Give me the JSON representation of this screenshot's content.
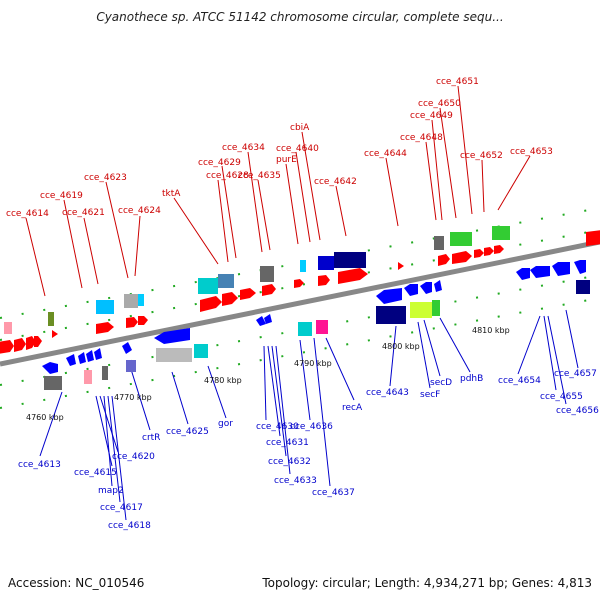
{
  "title": "Cyanothece sp. ATCC 51142 chromosome circular, complete sequ...",
  "footer": {
    "accession": "Accession: NC_010546",
    "summary": "Topology: circular; Length: 4,934,271 bp; Genes: 4,813"
  },
  "colors": {
    "forward": "#ff0000",
    "reverse": "#0000ff",
    "backbone": "#888888",
    "tick": "#22aa22"
  },
  "ruler": [
    {
      "label": "4760 kbp"
    },
    {
      "label": "4770 kbp"
    },
    {
      "label": "4780 kbp"
    },
    {
      "label": "4790 kbp"
    },
    {
      "label": "4800 kbp"
    },
    {
      "label": "4810 kbp"
    }
  ],
  "genes_forward": [
    {
      "label": "cce_4614"
    },
    {
      "label": "cce_4619"
    },
    {
      "label": "cce_4621"
    },
    {
      "label": "cce_4623"
    },
    {
      "label": "cce_4624"
    },
    {
      "label": "tktA"
    },
    {
      "label": "cce_4628"
    },
    {
      "label": "cce_4629"
    },
    {
      "label": "cce_4634"
    },
    {
      "label": "cce_4635"
    },
    {
      "label": "purE"
    },
    {
      "label": "cce_4640"
    },
    {
      "label": "cbiA"
    },
    {
      "label": "cce_4642"
    },
    {
      "label": "cce_4644"
    },
    {
      "label": "cce_4648"
    },
    {
      "label": "cce_4649"
    },
    {
      "label": "cce_4650"
    },
    {
      "label": "cce_4651"
    },
    {
      "label": "cce_4652"
    },
    {
      "label": "cce_4653"
    }
  ],
  "genes_reverse": [
    {
      "label": "cce_4613"
    },
    {
      "label": "cce_4615"
    },
    {
      "label": "cce_4620"
    },
    {
      "label": "map2"
    },
    {
      "label": "cce_4617"
    },
    {
      "label": "cce_4618"
    },
    {
      "label": "crtR"
    },
    {
      "label": "cce_4625"
    },
    {
      "label": "gor"
    },
    {
      "label": "cce_4630"
    },
    {
      "label": "cce_4631"
    },
    {
      "label": "cce_4632"
    },
    {
      "label": "cce_4633"
    },
    {
      "label": "cce_4636"
    },
    {
      "label": "cce_4637"
    },
    {
      "label": "recA"
    },
    {
      "label": "cce_4643"
    },
    {
      "label": "secF"
    },
    {
      "label": "secD"
    },
    {
      "label": "pdhB"
    },
    {
      "label": "cce_4654"
    },
    {
      "label": "cce_4655"
    },
    {
      "label": "cce_4656"
    },
    {
      "label": "cce_4657"
    }
  ]
}
